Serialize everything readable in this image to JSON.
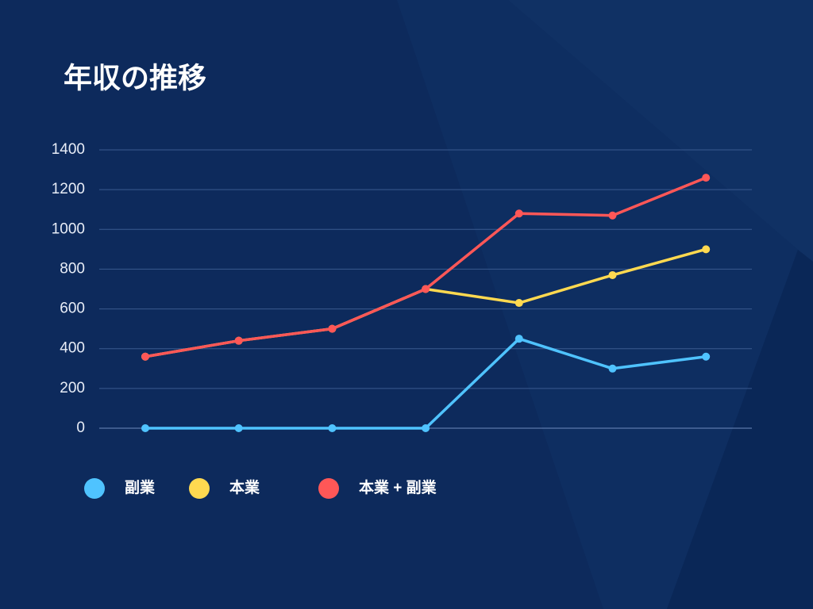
{
  "chart_data": {
    "type": "line",
    "title": "年収の推移",
    "categories": [
      null,
      null,
      null,
      null,
      null,
      null,
      null
    ],
    "series": [
      {
        "name": "副業",
        "color": "#4fc3ff",
        "values": [
          0,
          0,
          0,
          0,
          450,
          300,
          360
        ]
      },
      {
        "name": "本業",
        "color": "#ffd950",
        "values": [
          360,
          440,
          500,
          700,
          630,
          770,
          900
        ]
      },
      {
        "name": "本業 + 副業",
        "color": "#ff5757",
        "values": [
          360,
          440,
          500,
          700,
          1080,
          1070,
          1260
        ]
      }
    ],
    "ylim": [
      0,
      1400
    ],
    "yticks": [
      0,
      200,
      400,
      600,
      800,
      1000,
      1200,
      1400
    ],
    "grid": true,
    "legend": "bottom"
  }
}
